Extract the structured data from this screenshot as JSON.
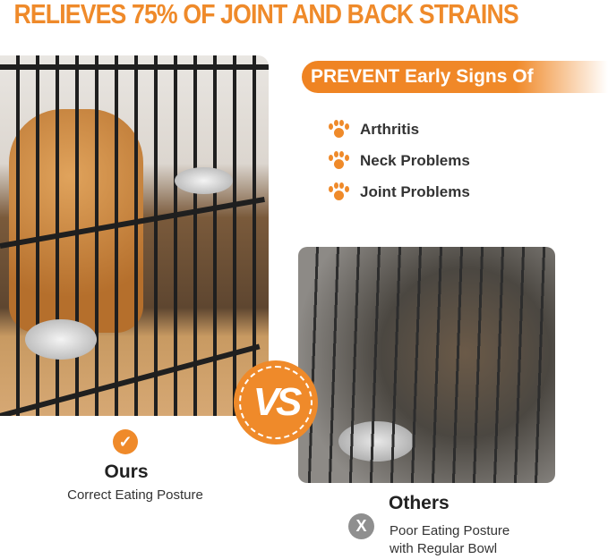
{
  "headline": "RELIEVES 75% OF JOINT AND BACK STRAINS",
  "banner": "PREVENT Early Signs Of",
  "conditions": [
    {
      "label": "Arthritis",
      "icon": "paw-icon"
    },
    {
      "label": "Neck Problems",
      "icon": "paw-icon"
    },
    {
      "label": "Joint Problems",
      "icon": "paw-icon"
    }
  ],
  "vs_label": "VS",
  "ours": {
    "icon": "check-icon",
    "title": "Ours",
    "subtitle": "Correct Eating Posture"
  },
  "others": {
    "icon": "x-icon",
    "icon_glyph": "X",
    "title": "Others",
    "subtitle_line1": "Poor Eating Posture",
    "subtitle_line2": "with Regular Bowl"
  },
  "colors": {
    "accent": "#ef8a2a",
    "text": "#333333",
    "gray": "#8f8f8f"
  }
}
